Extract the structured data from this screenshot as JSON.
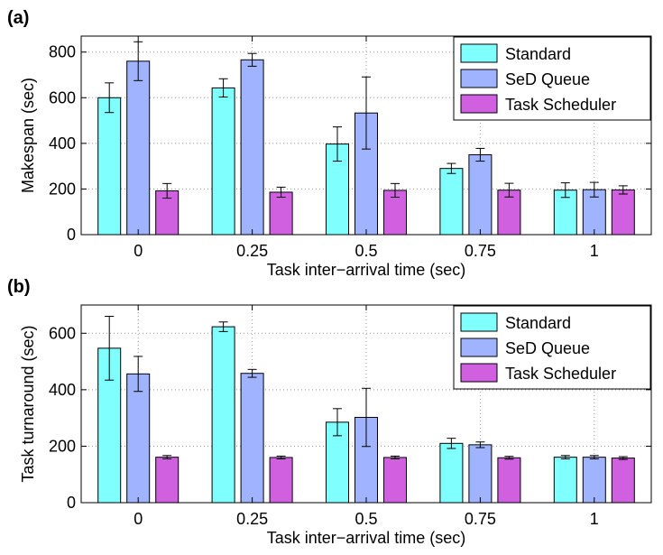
{
  "chart_data": [
    {
      "panel_label": "(a)",
      "type": "bar",
      "categories": [
        "0",
        "0.25",
        "0.5",
        "0.75",
        "1"
      ],
      "xlabel": "Task inter−arrival time (sec)",
      "ylabel": "Makespan (sec)",
      "ylim": [
        0,
        870
      ],
      "yticks": [
        0,
        200,
        400,
        600,
        800
      ],
      "grid": true,
      "legend": "top-right",
      "series": [
        {
          "name": "Standard",
          "color": "#80ffff",
          "values": [
            600,
            643,
            397,
            290,
            195
          ],
          "err": [
            65,
            40,
            75,
            22,
            32
          ]
        },
        {
          "name": "SeD Queue",
          "color": "#a0b3ff",
          "values": [
            760,
            766,
            533,
            350,
            197
          ],
          "err": [
            85,
            28,
            158,
            28,
            32
          ]
        },
        {
          "name": "Task Scheduler",
          "color": "#d060e0",
          "values": [
            192,
            186,
            194,
            195,
            196
          ],
          "err": [
            32,
            22,
            30,
            30,
            18
          ]
        }
      ]
    },
    {
      "panel_label": "(b)",
      "type": "bar",
      "categories": [
        "0",
        "0.25",
        "0.5",
        "0.75",
        "1"
      ],
      "xlabel": "Task inter−arrival time (sec)",
      "ylabel": "Task turnaround (sec)",
      "ylim": [
        0,
        700
      ],
      "yticks": [
        0,
        200,
        400,
        600
      ],
      "grid": true,
      "legend": "top-right",
      "series": [
        {
          "name": "Standard",
          "color": "#80ffff",
          "values": [
            547,
            623,
            285,
            210,
            161
          ],
          "err": [
            113,
            17,
            48,
            18,
            6
          ]
        },
        {
          "name": "SeD Queue",
          "color": "#a0b3ff",
          "values": [
            456,
            458,
            302,
            205,
            161
          ],
          "err": [
            62,
            14,
            103,
            10,
            6
          ]
        },
        {
          "name": "Task Scheduler",
          "color": "#d060e0",
          "values": [
            161,
            160,
            160,
            159,
            158
          ],
          "err": [
            6,
            5,
            5,
            5,
            5
          ]
        }
      ]
    }
  ]
}
